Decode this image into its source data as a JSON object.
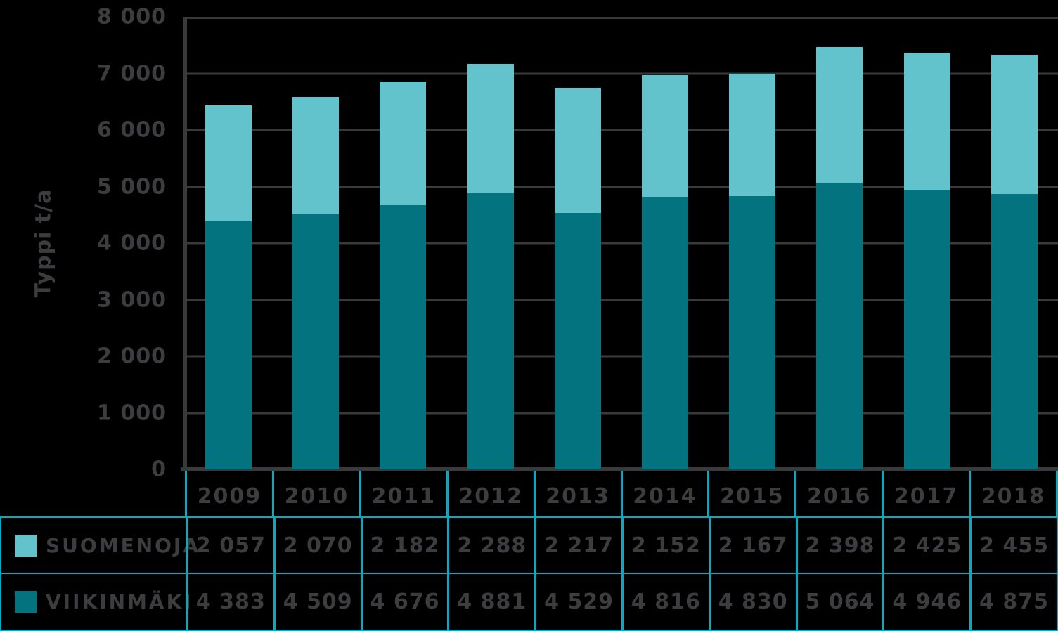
{
  "colors": {
    "background": "#000000",
    "suomenoja": "#63c3cd",
    "viikinmaki": "#03737f",
    "table_border": "#0aa9c2",
    "gridline": "#3a3a3a",
    "axis": "#3a3a3c",
    "text": "#3d3d3f"
  },
  "chart_data": {
    "type": "bar",
    "stacked": true,
    "title": "",
    "xlabel": "",
    "ylabel": "Typpi t/a",
    "ylim": [
      0,
      8000
    ],
    "ytick_interval": 1000,
    "grid": true,
    "legend_position": "table-left",
    "categories": [
      "2009",
      "2010",
      "2011",
      "2012",
      "2013",
      "2014",
      "2015",
      "2016",
      "2017",
      "2018"
    ],
    "series": [
      {
        "name": "SUOMENOJA",
        "stack_position": "top",
        "color": "#63c3cd",
        "values": [
          2057,
          2070,
          2182,
          2288,
          2217,
          2152,
          2167,
          2398,
          2425,
          2455
        ],
        "values_display": [
          "2 057",
          "2 070",
          "2 182",
          "2 288",
          "2 217",
          "2 152",
          "2 167",
          "2 398",
          "2 425",
          "2 455"
        ]
      },
      {
        "name": "VIIKINMÄKI",
        "stack_position": "bottom",
        "color": "#03737f",
        "values": [
          4383,
          4509,
          4676,
          4881,
          4529,
          4816,
          4830,
          5064,
          4946,
          4875
        ],
        "values_display": [
          "4 383",
          "4 509",
          "4 676",
          "4 881",
          "4 529",
          "4 816",
          "4 830",
          "5 064",
          "4 946",
          "4 875"
        ]
      }
    ]
  },
  "y_axis": {
    "title": "Typpi t/a",
    "ticks": [
      {
        "value": 0,
        "label": "0"
      },
      {
        "value": 1000,
        "label": "1 000"
      },
      {
        "value": 2000,
        "label": "2 000"
      },
      {
        "value": 3000,
        "label": "3 000"
      },
      {
        "value": 4000,
        "label": "4 000"
      },
      {
        "value": 5000,
        "label": "5 000"
      },
      {
        "value": 6000,
        "label": "6 000"
      },
      {
        "value": 7000,
        "label": "7 000"
      },
      {
        "value": 8000,
        "label": "8 000"
      }
    ]
  }
}
